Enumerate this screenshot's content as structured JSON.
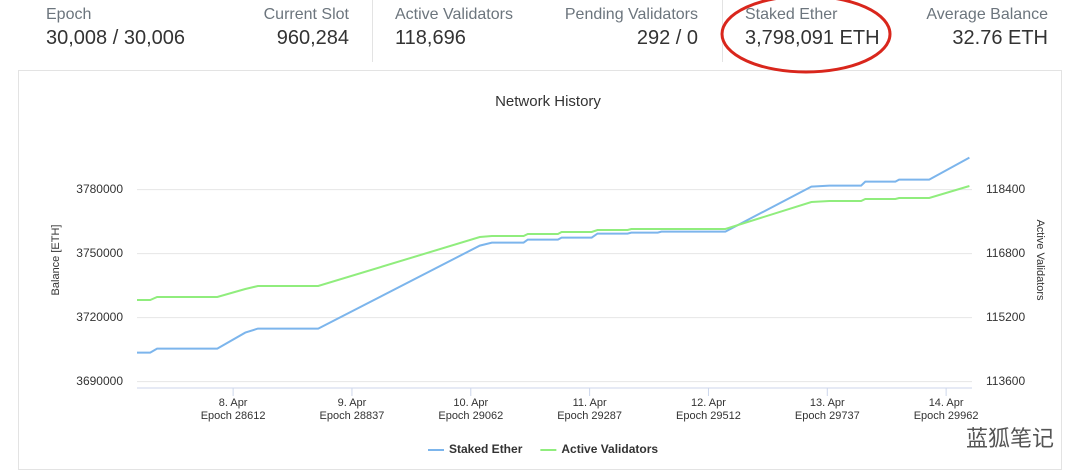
{
  "stats": [
    {
      "label": "Epoch",
      "value": "30,008 / 30,006"
    },
    {
      "label": "Current Slot",
      "value": "960,284"
    },
    {
      "label": "Active Validators",
      "value": "118,696"
    },
    {
      "label": "Pending Validators",
      "value": "292 / 0"
    },
    {
      "label": "Staked Ether",
      "value": "3,798,091 ETH"
    },
    {
      "label": "Average Balance",
      "value": "32.76 ETH"
    }
  ],
  "chart_data": {
    "type": "line",
    "title": "Network History",
    "y_label": "Balance [ETH]",
    "y2_label": "Active Validators",
    "x": [
      28430,
      28455,
      28468,
      28582,
      28635,
      28659,
      28773,
      29079,
      29102,
      29162,
      29170,
      29227,
      29234,
      29291,
      29302,
      29359,
      29366,
      29416,
      29423,
      29544,
      29707,
      29741,
      29801,
      29809,
      29866,
      29873,
      29930,
      30006
    ],
    "series": [
      {
        "name": "Staked Ether",
        "color": "#7cb5ec",
        "axis": "y",
        "values": [
          3703600,
          3703600,
          3705470,
          3705470,
          3712970,
          3714840,
          3714840,
          3753750,
          3755160,
          3755160,
          3756560,
          3756560,
          3757500,
          3757500,
          3759380,
          3759380,
          3759840,
          3759840,
          3760310,
          3760310,
          3781410,
          3781880,
          3781880,
          3783750,
          3783750,
          3784690,
          3784690,
          3795000
        ]
      },
      {
        "name": "Active Validators",
        "color": "#90ed7d",
        "axis": "y2",
        "values": [
          115650,
          115650,
          115725,
          115725,
          115925,
          116000,
          116000,
          117225,
          117250,
          117250,
          117300,
          117300,
          117350,
          117350,
          117400,
          117400,
          117425,
          117425,
          117425,
          117425,
          118100,
          118125,
          118125,
          118175,
          118175,
          118200,
          118200,
          118500
        ]
      }
    ],
    "xlim": [
      28430,
      30011
    ],
    "xticks": [
      {
        "value": 28612,
        "label": "8. Apr"
      },
      {
        "value": 28837,
        "label": "9. Apr"
      },
      {
        "value": 29062,
        "label": "10. Apr"
      },
      {
        "value": 29287,
        "label": "11. Apr"
      },
      {
        "value": 29512,
        "label": "12. Apr"
      },
      {
        "value": 29737,
        "label": "13. Apr"
      },
      {
        "value": 29962,
        "label": "14. Apr"
      }
    ],
    "xtick_sublabels": [
      "Epoch 28612",
      "Epoch 28837",
      "Epoch 29062",
      "Epoch 29287",
      "Epoch 29512",
      "Epoch 29737",
      "Epoch 29962"
    ],
    "ylim": [
      3687000,
      3807000
    ],
    "yticks": [
      3690000,
      3720000,
      3750000,
      3780000
    ],
    "y2lim": [
      113450,
      119850
    ],
    "y2ticks": [
      113600,
      115200,
      116800,
      118400
    ],
    "grid": true,
    "legend": "bottom"
  },
  "watermark": "蓝狐笔记"
}
